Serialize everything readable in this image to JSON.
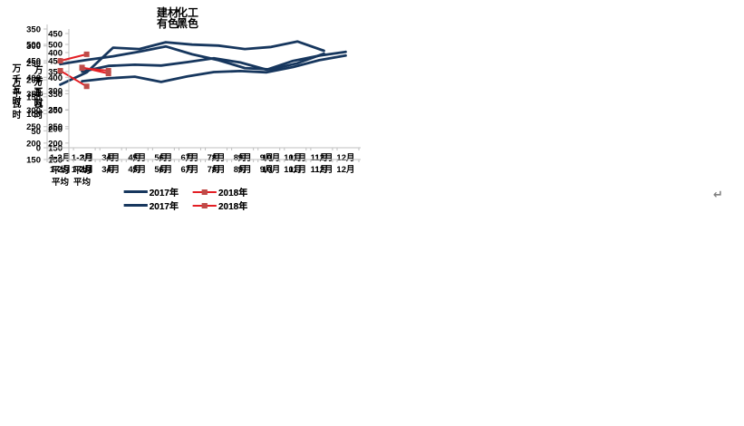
{
  "page": {
    "return_mark": "↵"
  },
  "style": {
    "background": "#FFFFFF",
    "axis_color": "#BFBFBF",
    "text_color": "#000000",
    "series_2017_color": "#17375E",
    "series_2018_line_color": "#E31E24",
    "series_2018_marker_color": "#BE4B48",
    "return_mark_color": "#808080"
  },
  "legend": {
    "items": [
      "2017年",
      "2018年"
    ]
  },
  "chart_data": [
    {
      "type": "line",
      "title": "化工",
      "ylabel": "万千瓦时",
      "xlabel": "",
      "ylim": [
        150,
        450
      ],
      "ytick_step": 50,
      "grid": false,
      "legend_position": "bottom",
      "categories": [
        "1-2月",
        "3月",
        "4月",
        "5月",
        "6月",
        "7月",
        "8月",
        "9月",
        "10月",
        "11月",
        "12月"
      ],
      "first_category_note": "平均",
      "series": [
        {
          "name": "2017年",
          "values": [
            350,
            365,
            368,
            366,
            375,
            385,
            374,
            355,
            378,
            392,
            402
          ]
        },
        {
          "name": "2018年",
          "values": [
            361,
            345
          ]
        }
      ]
    },
    {
      "type": "line",
      "title": "建材",
      "ylabel": "万千瓦时",
      "xlabel": "",
      "ylim": [
        0,
        350
      ],
      "ytick_step": 50,
      "grid": false,
      "legend_position": "bottom",
      "categories": [
        "1-2月",
        "3月",
        "4月",
        "5月",
        "6月",
        "7月",
        "8月",
        "9月",
        "10月",
        "11月",
        "12月"
      ],
      "first_category_note": "平均",
      "series": [
        {
          "name": "2017年",
          "values": [
            186,
            222,
            295,
            291,
            311,
            304,
            301,
            291,
            297,
            313,
            286
          ]
        },
        {
          "name": "2018年",
          "values": [
            227,
            181
          ]
        }
      ]
    },
    {
      "type": "line",
      "title": "黑色",
      "ylabel": "万千瓦时",
      "xlabel": "",
      "ylim": [
        150,
        500
      ],
      "ytick_step": 50,
      "grid": false,
      "legend_position": "bottom",
      "categories": [
        "1-2月",
        "3月",
        "4月",
        "5月",
        "6月",
        "7月",
        "8月",
        "9月",
        "10月",
        "11月",
        "12月"
      ],
      "first_category_note": "平均",
      "series": [
        {
          "name": "2017年",
          "values": [
            388,
            397,
            402,
            386,
            403,
            416,
            419,
            415,
            431,
            452,
            466
          ]
        },
        {
          "name": "2018年",
          "values": [
            428,
            420
          ]
        }
      ]
    },
    {
      "type": "line",
      "title": "有色",
      "ylabel": "万千瓦时",
      "xlabel": "",
      "ylim": [
        150,
        500
      ],
      "ytick_step": 50,
      "grid": false,
      "legend_position": "bottom",
      "categories": [
        "1-2月",
        "3月",
        "4月",
        "5月",
        "6月",
        "7月",
        "8月",
        "9月",
        "10月",
        "11月",
        "12月"
      ],
      "first_category_note": "平均",
      "series": [
        {
          "name": "2017年",
          "values": [
            440,
            453,
            464,
            478,
            494,
            470,
            452,
            428,
            424,
            443,
            472
          ]
        },
        {
          "name": "2018年",
          "values": [
            450,
            470
          ]
        }
      ]
    }
  ]
}
